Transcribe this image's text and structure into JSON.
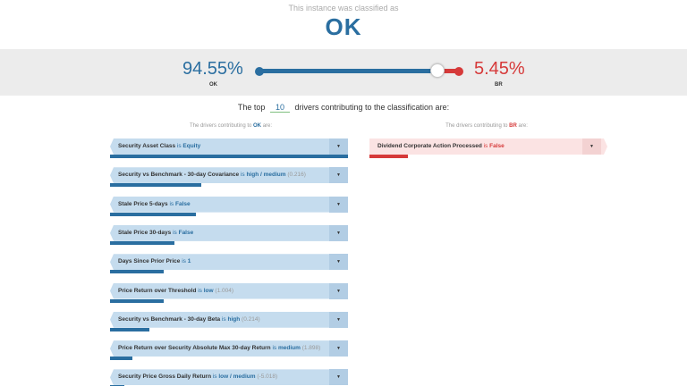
{
  "header": {
    "subtitle": "This instance was classified as",
    "classification": "OK"
  },
  "probabilities": {
    "ok_percent": "94.55%",
    "ok_label": "OK",
    "br_percent": "5.45%",
    "br_label": "BR",
    "ok_fraction": 0.9455
  },
  "top_drivers": {
    "prefix": "The top",
    "count": "10",
    "suffix": "drivers contributing to the classification are:"
  },
  "ok_column": {
    "title_prefix": "The drivers contributing to",
    "title_class": "OK",
    "title_suffix": "are:",
    "color": "#2a6ea0",
    "drivers": [
      {
        "feature": "Security Asset Class",
        "is": "is",
        "value": "Equity",
        "number": "",
        "weight": 1.0
      },
      {
        "feature": "Security vs Benchmark - 30-day Covariance",
        "is": "is",
        "value": "high / medium",
        "number": "(0.216)",
        "weight": 0.385
      },
      {
        "feature": "Stale Price 5-days",
        "is": "is",
        "value": "False",
        "number": "",
        "weight": 0.36
      },
      {
        "feature": "Stale Price 30-days",
        "is": "is",
        "value": "False",
        "number": "",
        "weight": 0.27
      },
      {
        "feature": "Days Since Prior Price",
        "is": "is",
        "value": "1",
        "number": "",
        "weight": 0.225
      },
      {
        "feature": "Price Return over Threshold",
        "is": "is",
        "value": "low",
        "number": "(1.004)",
        "weight": 0.225
      },
      {
        "feature": "Security vs Benchmark - 30-day Beta",
        "is": "is",
        "value": "high",
        "number": "(0.214)",
        "weight": 0.165
      },
      {
        "feature": "Price Return over Security Absolute Max 30-day Return",
        "is": "is",
        "value": "medium",
        "number": "(1.898)",
        "weight": 0.095
      },
      {
        "feature": "Security Price Gross Daily Return",
        "is": "is",
        "value": "low / medium",
        "number": "(-5.018)",
        "weight": 0.06
      }
    ]
  },
  "br_column": {
    "title_prefix": "The drivers contributing to",
    "title_class": "BR",
    "title_suffix": "are:",
    "color": "#d63a3a",
    "drivers": [
      {
        "feature": "Dividend Corporate Action Processed",
        "is": "is",
        "value": "False",
        "number": "",
        "weight": 0.16
      }
    ]
  },
  "icons": {
    "dropdown": "triangle-down-icon",
    "dropdown_glyph": "▼"
  }
}
